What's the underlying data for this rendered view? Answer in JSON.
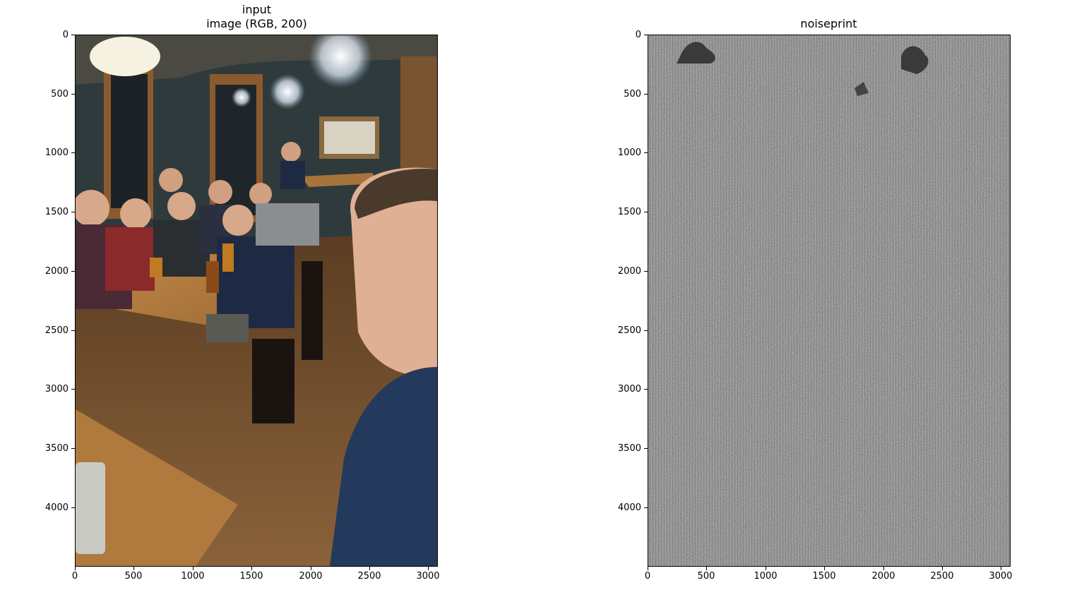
{
  "chart_data": [
    {
      "type": "image",
      "title_line1": "input",
      "title_line2": "image (RGB, 200)",
      "xlim": [
        0,
        3072
      ],
      "ylim": [
        4500,
        0
      ],
      "xticks": [
        0,
        500,
        1000,
        1500,
        2000,
        2500,
        3000
      ],
      "yticks": [
        0,
        500,
        1000,
        1500,
        2000,
        2500,
        3000,
        3500,
        4000
      ],
      "colors": {
        "wall": "#2f3a3d",
        "floor": "#6b4a2c",
        "table": "#b07a3e",
        "light": "#f6f2e2",
        "shirt": "#243a5c"
      }
    },
    {
      "type": "heatmap",
      "title": "noiseprint",
      "xlim": [
        0,
        3072
      ],
      "ylim": [
        4500,
        0
      ],
      "xticks": [
        0,
        500,
        1000,
        1500,
        2000,
        2500,
        3000
      ],
      "yticks": [
        0,
        500,
        1000,
        1500,
        2000,
        2500,
        3000,
        3500,
        4000
      ],
      "colormap": "gray",
      "colors": {
        "base": "#6e6e6e",
        "dark_blob": "#3a3a3a"
      }
    }
  ]
}
